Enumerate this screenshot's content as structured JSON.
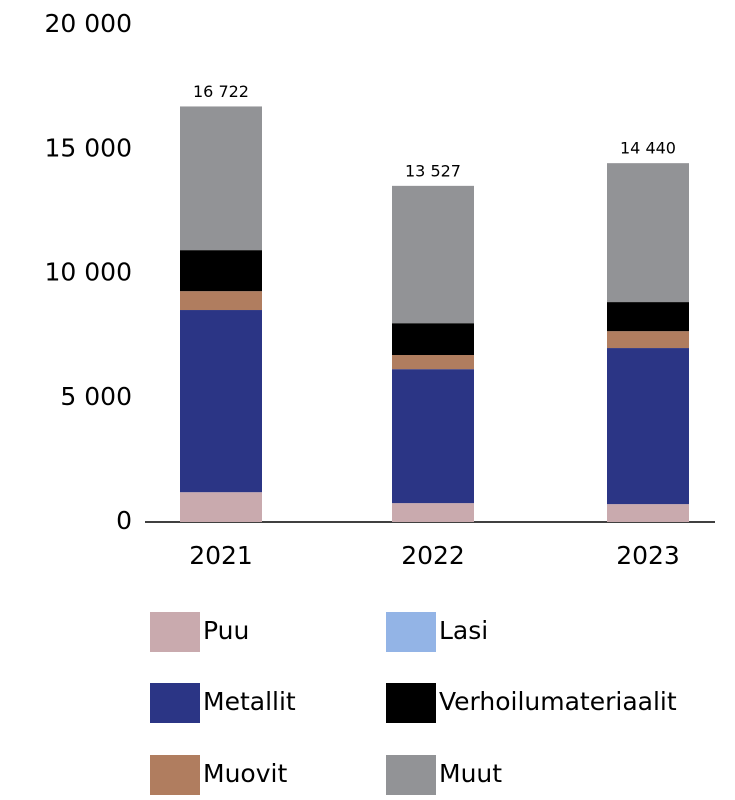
{
  "chart_data": {
    "type": "stacked_bar",
    "categories": [
      "2021",
      "2022",
      "2023"
    ],
    "series": [
      {
        "name": "Puu",
        "color": "#c9aaae",
        "values": [
          1200,
          760,
          720
        ]
      },
      {
        "name": "Lasi",
        "color": "#93b4e6",
        "values": [
          0,
          0,
          0
        ]
      },
      {
        "name": "Metallit",
        "color": "#2b3585",
        "values": [
          7330,
          5390,
          6280
        ]
      },
      {
        "name": "Muovit",
        "color": "#b07d5f",
        "values": [
          760,
          570,
          680
        ]
      },
      {
        "name": "Verhoilumateriaalit",
        "color": "#000000",
        "values": [
          1650,
          1280,
          1170
        ]
      },
      {
        "name": "Muut",
        "color": "#929396",
        "values": [
          5782,
          5527,
          5590
        ]
      }
    ],
    "totals": {
      "values": [
        16722,
        13527,
        14440
      ],
      "value_labels": [
        "16 722",
        "13 527",
        "14 440"
      ]
    },
    "ylim": [
      0,
      20000
    ],
    "yticks": [
      {
        "value": 20000,
        "label": "20 000"
      },
      {
        "value": 15000,
        "label": "15 000"
      },
      {
        "value": 10000,
        "label": "10 000"
      },
      {
        "value": 5000,
        "label": "5 000"
      },
      0
    ],
    "grid": false
  }
}
